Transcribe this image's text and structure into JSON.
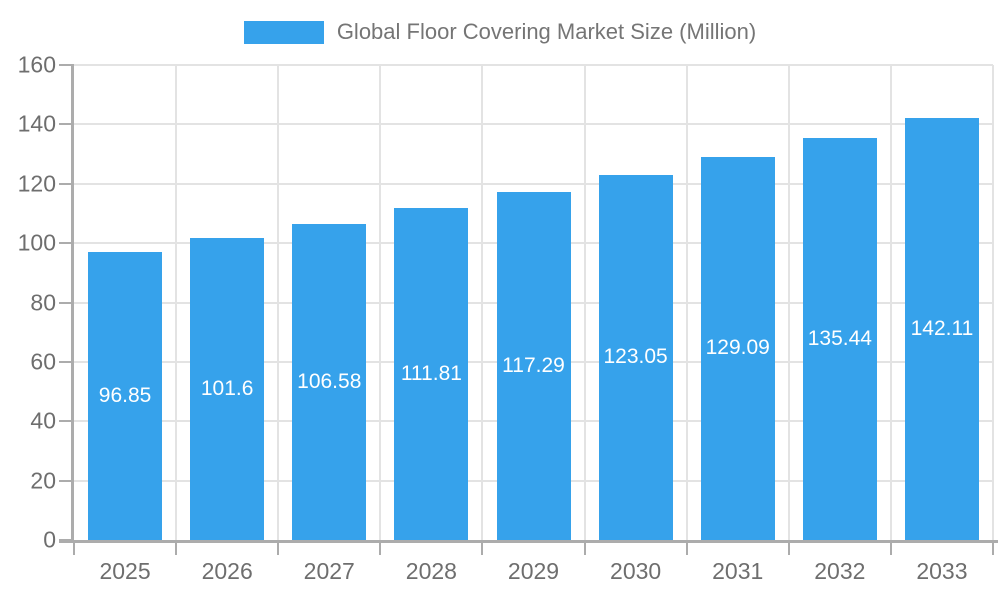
{
  "chart_data": {
    "type": "bar",
    "title": "Global Floor Covering Market Size (Million)",
    "legend": {
      "label": "Global Floor Covering Market Size (Million)",
      "position": "top"
    },
    "categories": [
      "2025",
      "2026",
      "2027",
      "2028",
      "2029",
      "2030",
      "2031",
      "2032",
      "2033"
    ],
    "series": [
      {
        "name": "Global Floor Covering Market Size (Million)",
        "values": [
          96.85,
          101.6,
          106.58,
          111.81,
          117.29,
          123.05,
          129.09,
          135.44,
          142.11
        ]
      }
    ],
    "value_labels": [
      "96.85",
      "101.6",
      "106.58",
      "111.81",
      "117.29",
      "123.05",
      "129.09",
      "135.44",
      "142.11"
    ],
    "xlabel": "",
    "ylabel": "",
    "ylim": [
      0,
      160
    ],
    "yticks": [
      0,
      20,
      40,
      60,
      80,
      100,
      120,
      140,
      160
    ],
    "grid": true,
    "colors": {
      "bar": "#36A2EB",
      "axis": "#ACACAC",
      "grid": "#E3E3E3",
      "tick_label": "#6E6E6E",
      "legend_text": "#757575",
      "value_label": "#FFFFFF"
    }
  }
}
